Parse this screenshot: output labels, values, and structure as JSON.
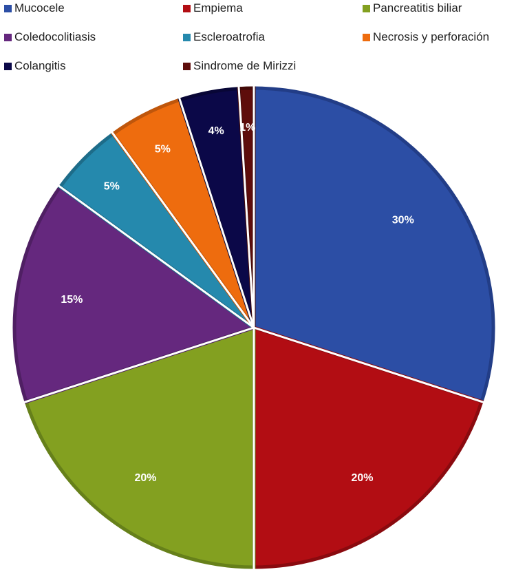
{
  "chart_data": {
    "type": "pie",
    "title": "",
    "legend_position": "top",
    "categories": [
      "Mucocele",
      "Empiema",
      "Pancreatitis biliar",
      "Coledocolitiasis",
      "Escleroatrofia",
      "Necrosis y perforación",
      "Colangitis",
      "Sindrome de Mirizzi"
    ],
    "values": [
      30,
      20,
      20,
      15,
      5,
      5,
      4,
      1
    ],
    "data_labels": [
      "30%",
      "20%",
      "20%",
      "15%",
      "5%",
      "5%",
      "4%",
      "1%"
    ],
    "colors": [
      "#2c4ea5",
      "#b20d13",
      "#83a020",
      "#65287e",
      "#2589ad",
      "#ee6c0e",
      "#0b0848",
      "#5e0d0b"
    ],
    "border_colors": [
      "#223d87",
      "#8a0a0f",
      "#66801a",
      "#4f1f63",
      "#1d6c89",
      "#bf560b",
      "#080636",
      "#420907"
    ]
  }
}
